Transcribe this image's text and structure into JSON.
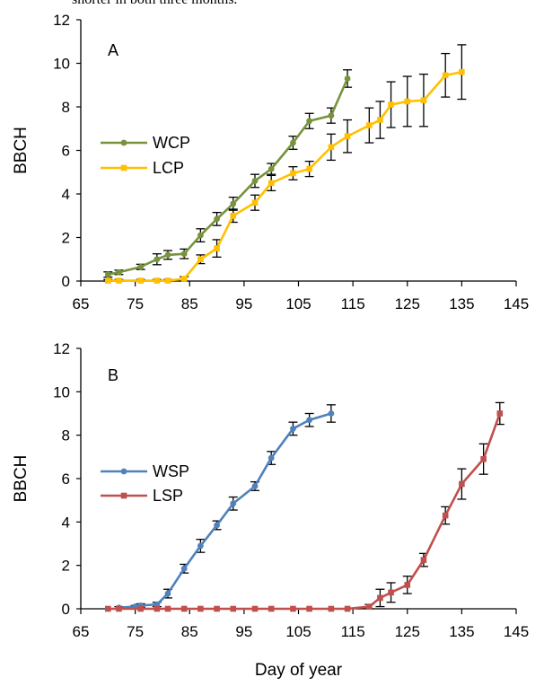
{
  "top_text": "shorter in both three months.",
  "chart_data": [
    {
      "type": "line",
      "panel_label": "A",
      "xlabel": "",
      "ylabel": "BBCH",
      "xlim": [
        65,
        145
      ],
      "ylim": [
        0,
        12
      ],
      "xticks": [
        65,
        75,
        85,
        95,
        105,
        115,
        125,
        135,
        145
      ],
      "yticks": [
        0,
        2,
        4,
        6,
        8,
        10,
        12
      ],
      "legend_position": "left-middle",
      "series": [
        {
          "name": "WCP",
          "color": "#77933C",
          "marker": "circle",
          "x": [
            70,
            72,
            76,
            79,
            81,
            84,
            87,
            90,
            93,
            97,
            100,
            104,
            107,
            111,
            114
          ],
          "y": [
            0.3,
            0.4,
            0.65,
            1.0,
            1.2,
            1.25,
            2.1,
            2.85,
            3.55,
            4.6,
            5.15,
            6.35,
            7.35,
            7.6,
            9.3
          ],
          "err": [
            0.12,
            0.1,
            0.12,
            0.25,
            0.2,
            0.22,
            0.3,
            0.3,
            0.3,
            0.3,
            0.25,
            0.3,
            0.35,
            0.35,
            0.4
          ]
        },
        {
          "name": "LCP",
          "color": "#FFC000",
          "marker": "square",
          "x": [
            70,
            72,
            76,
            79,
            81,
            84,
            87,
            90,
            93,
            97,
            100,
            104,
            107,
            111,
            114,
            118,
            120,
            122,
            125,
            128,
            132,
            135
          ],
          "y": [
            0.02,
            0.02,
            0.02,
            0.02,
            0.02,
            0.1,
            1.0,
            1.5,
            3.0,
            3.6,
            4.5,
            4.95,
            5.15,
            6.15,
            6.65,
            7.15,
            7.4,
            8.1,
            8.25,
            8.3,
            9.45,
            9.6
          ],
          "err": [
            0.05,
            0.05,
            0.05,
            0.05,
            0.05,
            0.1,
            0.2,
            0.4,
            0.3,
            0.35,
            0.35,
            0.3,
            0.35,
            0.6,
            0.75,
            0.8,
            0.85,
            1.05,
            1.15,
            1.2,
            1.0,
            1.25
          ]
        }
      ]
    },
    {
      "type": "line",
      "panel_label": "B",
      "xlabel": "Day of year",
      "ylabel": "BBCH",
      "xlim": [
        65,
        145
      ],
      "ylim": [
        0,
        12
      ],
      "xticks": [
        65,
        75,
        85,
        95,
        105,
        115,
        125,
        135,
        145
      ],
      "yticks": [
        0,
        2,
        4,
        6,
        8,
        10,
        12
      ],
      "legend_position": "left-middle",
      "series": [
        {
          "name": "WSP",
          "color": "#4F81BD",
          "marker": "circle",
          "x": [
            72,
            75,
            76,
            79,
            81,
            84,
            87,
            90,
            93,
            97,
            100,
            104,
            107,
            111
          ],
          "y": [
            0.05,
            0.1,
            0.15,
            0.2,
            0.7,
            1.85,
            2.9,
            3.85,
            4.85,
            5.65,
            6.95,
            8.3,
            8.7,
            9.0
          ],
          "err": [
            0.05,
            0.05,
            0.08,
            0.1,
            0.2,
            0.2,
            0.3,
            0.2,
            0.3,
            0.2,
            0.3,
            0.3,
            0.3,
            0.4
          ]
        },
        {
          "name": "LSP",
          "color": "#C0504D",
          "marker": "square",
          "x": [
            70,
            72,
            76,
            79,
            81,
            84,
            87,
            90,
            93,
            97,
            100,
            104,
            107,
            111,
            114,
            118,
            120,
            122,
            125,
            128,
            132,
            135,
            139,
            142
          ],
          "y": [
            0,
            0,
            0,
            0,
            0,
            0,
            0,
            0,
            0,
            0,
            0,
            0,
            0,
            0,
            0,
            0.1,
            0.5,
            0.75,
            1.1,
            2.25,
            4.3,
            5.75,
            6.9,
            9.0
          ],
          "err": [
            0,
            0,
            0,
            0,
            0,
            0,
            0,
            0,
            0,
            0,
            0,
            0,
            0,
            0,
            0,
            0.1,
            0.4,
            0.45,
            0.4,
            0.3,
            0.4,
            0.7,
            0.7,
            0.5
          ]
        }
      ]
    }
  ]
}
